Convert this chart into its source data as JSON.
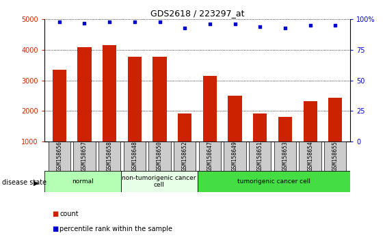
{
  "title": "GDS2618 / 223297_at",
  "samples": [
    "GSM158656",
    "GSM158657",
    "GSM158658",
    "GSM158648",
    "GSM158650",
    "GSM158652",
    "GSM158647",
    "GSM158649",
    "GSM158651",
    "GSM158653",
    "GSM158654",
    "GSM158655"
  ],
  "counts": [
    3350,
    4100,
    4150,
    3780,
    3780,
    1930,
    3150,
    2500,
    1930,
    1800,
    2330,
    2430
  ],
  "percentile_ranks": [
    98,
    97,
    98,
    98,
    98,
    93,
    96,
    96,
    94,
    93,
    95,
    95
  ],
  "disease_groups": [
    {
      "label": "normal",
      "start": 0,
      "end": 3,
      "color": "#b3ffb3"
    },
    {
      "label": "non-tumorigenic cancer\ncell",
      "start": 3,
      "end": 6,
      "color": "#e6ffe6"
    },
    {
      "label": "tumorigenic cancer cell",
      "start": 6,
      "end": 12,
      "color": "#44dd44"
    }
  ],
  "ylim_left": [
    1000,
    5000
  ],
  "ylim_right": [
    0,
    100
  ],
  "yticks_left": [
    1000,
    2000,
    3000,
    4000,
    5000
  ],
  "yticks_right": [
    0,
    25,
    50,
    75,
    100
  ],
  "bar_color": "#cc2200",
  "scatter_color": "#0000cc",
  "grid_color": "black",
  "bg_color": "white",
  "tick_bg_color": "#cccccc",
  "disease_state_label": "disease state",
  "legend_count_label": "count",
  "legend_percentile_label": "percentile rank within the sample",
  "bar_width": 0.55
}
